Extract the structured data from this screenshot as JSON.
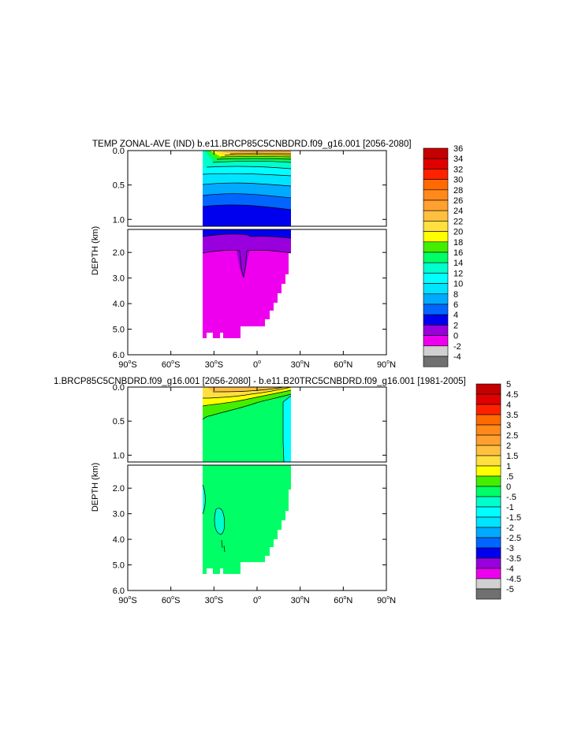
{
  "chart_data": [
    {
      "type": "contour",
      "title": "TEMP ZONAL-AVE (IND) b.e11.BRCP85C5CNBDRD.f09_g16.001 [2056-2080]",
      "ylabel": "DEPTH (km)",
      "x_ticks": [
        {
          "value": -90,
          "deg": "90",
          "hemi": "S"
        },
        {
          "value": -60,
          "deg": "60",
          "hemi": "S"
        },
        {
          "value": -30,
          "deg": "30",
          "hemi": "S"
        },
        {
          "value": 0,
          "deg": "0",
          "hemi": ""
        },
        {
          "value": 30,
          "deg": "30",
          "hemi": "N"
        },
        {
          "value": 60,
          "deg": "60",
          "hemi": "N"
        },
        {
          "value": 90,
          "deg": "90",
          "hemi": "N"
        }
      ],
      "xlim": [
        -90,
        90
      ],
      "upper_yticks": [
        "0.0",
        "0.5",
        "1.0"
      ],
      "lower_yticks": [
        "2.0",
        "3.0",
        "4.0",
        "5.0",
        "6.0"
      ],
      "upper_ylim": [
        0,
        1.1
      ],
      "lower_ylim": [
        1.1,
        6.0
      ],
      "colorbar": {
        "labels": [
          "36",
          "34",
          "32",
          "30",
          "28",
          "26",
          "24",
          "22",
          "20",
          "18",
          "16",
          "14",
          "12",
          "10",
          "8",
          "6",
          "4",
          "2",
          "0",
          "-2",
          "-4"
        ],
        "colors": [
          "#c40000",
          "#e00000",
          "#ff2200",
          "#ff6a00",
          "#ff8a1a",
          "#ffa030",
          "#ffc040",
          "#ffe040",
          "#ffff00",
          "#44ee00",
          "#00ff66",
          "#00ffcc",
          "#00ffff",
          "#00e4ff",
          "#00aaff",
          "#0066ff",
          "#0000ee",
          "#9900dd",
          "#ee00ee",
          "#d0d0d0",
          "#707070"
        ]
      }
    },
    {
      "type": "contour",
      "title": "1.BRCP85C5CNBDRD.f09_g16.001 [2056-2080] - b.e11.B20TRC5CNBDRD.f09_g16.001 [1981-2005]",
      "ylabel": "DEPTH (km)",
      "x_ticks": [
        {
          "value": -90,
          "deg": "90",
          "hemi": "S"
        },
        {
          "value": -60,
          "deg": "60",
          "hemi": "S"
        },
        {
          "value": -30,
          "deg": "30",
          "hemi": "S"
        },
        {
          "value": 0,
          "deg": "0",
          "hemi": ""
        },
        {
          "value": 30,
          "deg": "30",
          "hemi": "N"
        },
        {
          "value": 60,
          "deg": "60",
          "hemi": "N"
        },
        {
          "value": 90,
          "deg": "90",
          "hemi": "N"
        }
      ],
      "xlim": [
        -90,
        90
      ],
      "upper_yticks": [
        "0.0",
        "0.5",
        "1.0"
      ],
      "lower_yticks": [
        "2.0",
        "3.0",
        "4.0",
        "5.0",
        "6.0"
      ],
      "upper_ylim": [
        0,
        1.1
      ],
      "lower_ylim": [
        1.1,
        6.0
      ],
      "colorbar": {
        "labels": [
          "5",
          "4.5",
          "4",
          "3.5",
          "3",
          "2.5",
          "2",
          "1.5",
          "1",
          ".5",
          "0",
          "-.5",
          "-1",
          "-1.5",
          "-2",
          "-2.5",
          "-3",
          "-3.5",
          "-4",
          "-4.5",
          "-5"
        ],
        "colors": [
          "#c40000",
          "#e00000",
          "#ff2200",
          "#ff6a00",
          "#ff8a1a",
          "#ffa030",
          "#ffc040",
          "#ffe040",
          "#ffff00",
          "#44ee00",
          "#00ff66",
          "#00ffcc",
          "#00ffff",
          "#00e4ff",
          "#00aaff",
          "#0066ff",
          "#0000ee",
          "#9900dd",
          "#ee00ee",
          "#d0d0d0",
          "#707070"
        ]
      }
    }
  ]
}
